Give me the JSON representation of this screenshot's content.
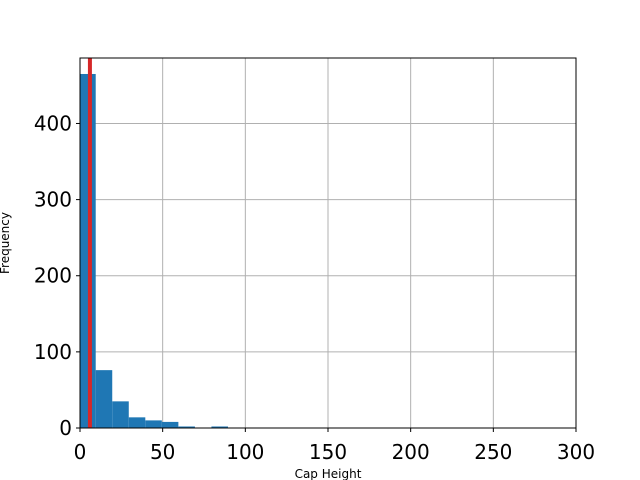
{
  "chart_data": {
    "type": "bar",
    "title": "",
    "xlabel": "Cap Height",
    "ylabel": "Frequency",
    "xlim": [
      0,
      300
    ],
    "ylim": [
      0,
      486
    ],
    "grid": true,
    "bar_color": "#1f77b4",
    "marker_color": "#d62728",
    "marker_x": 6,
    "xticks": [
      0,
      50,
      100,
      150,
      200,
      250,
      300
    ],
    "yticks": [
      0,
      100,
      200,
      300,
      400
    ],
    "bins": [
      {
        "x0": 0,
        "x1": 9.5,
        "count": 465
      },
      {
        "x0": 9.5,
        "x1": 19.5,
        "count": 76
      },
      {
        "x0": 19.5,
        "x1": 29.5,
        "count": 35
      },
      {
        "x0": 29.5,
        "x1": 39.5,
        "count": 14
      },
      {
        "x0": 39.5,
        "x1": 49.5,
        "count": 10
      },
      {
        "x0": 49.5,
        "x1": 59.5,
        "count": 8
      },
      {
        "x0": 59.5,
        "x1": 69.5,
        "count": 2
      },
      {
        "x0": 69.5,
        "x1": 79.5,
        "count": 0
      },
      {
        "x0": 79.5,
        "x1": 89.5,
        "count": 2
      }
    ]
  }
}
